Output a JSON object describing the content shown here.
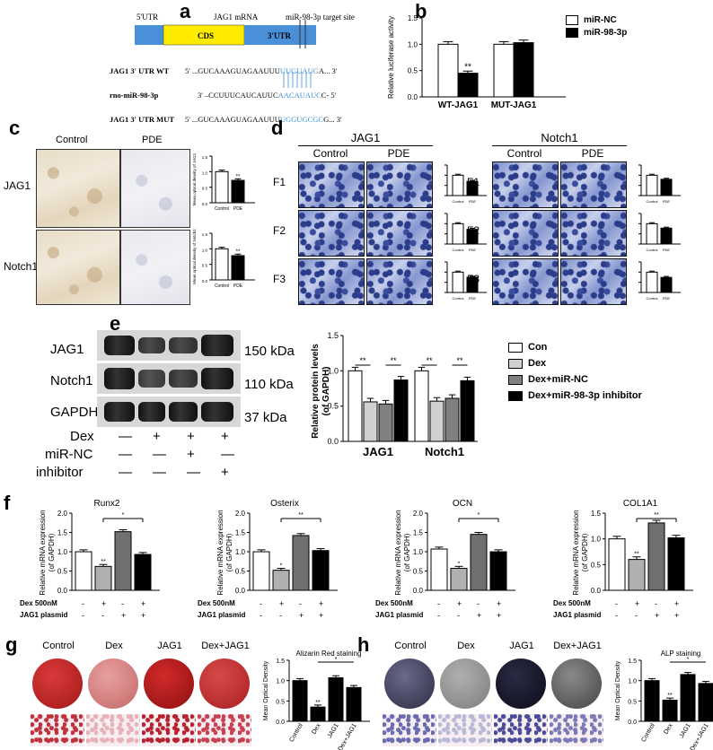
{
  "panel_letters": {
    "a": "a",
    "b": "b",
    "c": "c",
    "d": "d",
    "e": "e",
    "f": "f",
    "g": "g",
    "h": "h"
  },
  "panel_a": {
    "utr5": "5'UTR",
    "mrna": "JAG1 mRNA",
    "target": "miR-98-3p target site",
    "cds": "CDS",
    "utr3": "3'UTR",
    "rows": [
      {
        "name": "JAG1 3' UTR WT",
        "prefix": "5' ...GUCAAAGUAGAAUUU",
        "hl": "UUGUAUG",
        "suffix": "A... 3'"
      },
      {
        "name": "rno-miR-98-3p",
        "prefix": "3' –CCUUUCAUCAUUC",
        "hl": "AACAUAUC",
        "suffix": "C- 5'"
      },
      {
        "name": "JAG1 3' UTR MUT",
        "prefix": "5' ...GUCAAAGUAGAAUUU",
        "hl": "UGGUGCGC",
        "suffix": "G... 3'"
      }
    ],
    "colors": {
      "utr": "#4a90d9",
      "cds": "#ffeb00",
      "highlight": "#3a8fd8"
    }
  },
  "panel_b": {
    "chart_data": {
      "type": "bar",
      "categories": [
        "WT-JAG1",
        "MUT-JAG1"
      ],
      "series": [
        {
          "name": "miR-NC",
          "values": [
            1.0,
            1.0
          ],
          "err": [
            0.05,
            0.05
          ],
          "color": "#ffffff"
        },
        {
          "name": "miR-98-3p",
          "values": [
            0.45,
            1.03
          ],
          "err": [
            0.04,
            0.05
          ],
          "color": "#000000"
        }
      ],
      "ylabel": "Relative luciferase activity",
      "ylim": [
        0,
        1.5
      ],
      "yticks": [
        "0.0",
        "0.5",
        "1.0",
        "1.5"
      ],
      "annotations": [
        {
          "text": "**",
          "category": 0,
          "series": 1
        }
      ]
    }
  },
  "panel_c": {
    "cols": [
      "Control",
      "PDE"
    ],
    "rows": [
      "JAG1",
      "Notch1"
    ],
    "bars": [
      {
        "ylabel": "Mean optical density of JAG1",
        "values": [
          1.0,
          0.72
        ],
        "cats": [
          "Control",
          "PDE"
        ],
        "ann": "**"
      },
      {
        "ylabel": "Mean optical density of Notch1",
        "values": [
          1.0,
          0.78
        ],
        "cats": [
          "Control",
          "PDE"
        ],
        "ann": "**"
      }
    ]
  },
  "panel_d": {
    "groups": [
      {
        "title": "JAG1",
        "cols": [
          "Control",
          "PDE"
        ],
        "rows": [
          "F1",
          "F2",
          "F3"
        ]
      },
      {
        "title": "Notch1",
        "cols": [
          "Control",
          "PDE"
        ],
        "rows": [
          "F1",
          "F2",
          "F3"
        ]
      }
    ],
    "mini_cats": [
      "Control",
      "PDE"
    ]
  },
  "panel_e": {
    "blots": [
      {
        "label": "JAG1",
        "size": "150 kDa"
      },
      {
        "label": "Notch1",
        "size": "110 kDa"
      },
      {
        "label": "GAPDH",
        "size": "37 kDa"
      }
    ],
    "treatments": [
      {
        "label": "Dex",
        "signs": [
          "—",
          "+",
          "+",
          "+"
        ]
      },
      {
        "label": "miR-NC",
        "signs": [
          "—",
          "—",
          "+",
          "—"
        ]
      },
      {
        "label": "inhibitor",
        "signs": [
          "—",
          "—",
          "—",
          "+"
        ]
      }
    ],
    "chart_data": {
      "type": "bar",
      "categories": [
        "JAG1",
        "Notch1"
      ],
      "series": [
        {
          "name": "Con",
          "values": [
            1.0,
            1.0
          ],
          "color": "#ffffff"
        },
        {
          "name": "Dex",
          "values": [
            0.56,
            0.57
          ],
          "color": "#d0d0d0"
        },
        {
          "name": "Dex+miR-NC",
          "values": [
            0.53,
            0.61
          ],
          "color": "#808080"
        },
        {
          "name": "Dex+miR-98-3p inhibitor",
          "values": [
            0.87,
            0.86
          ],
          "color": "#000000"
        }
      ],
      "ylabel": "Relative protein levels (of GAPDH)",
      "ylim": [
        0,
        1.5
      ],
      "yticks": [
        "0.0",
        "0.5",
        "1.0",
        "1.5"
      ],
      "annotations": [
        "**",
        "**",
        "**",
        "**"
      ]
    }
  },
  "panel_f": {
    "row_labels": [
      "Dex 500nM",
      "JAG1 plasmid"
    ],
    "signs": [
      [
        "-",
        "+",
        "-",
        "+"
      ],
      [
        "-",
        "-",
        "+",
        "+"
      ]
    ],
    "ylabel": "Relative mRNA expression (of GAPDH)",
    "charts": [
      {
        "title": "Runx2",
        "values": [
          1.0,
          0.62,
          1.52,
          0.93
        ],
        "ylim": [
          0,
          2.0
        ],
        "yticks": [
          "0.0",
          "0.5",
          "1.0",
          "1.5",
          "2.0"
        ],
        "ann_bar": "**",
        "ann_bracket": "*"
      },
      {
        "title": "Osterix",
        "values": [
          1.0,
          0.52,
          1.42,
          1.03
        ],
        "ylim": [
          0,
          2.0
        ],
        "yticks": [
          "0.0",
          "0.5",
          "1.0",
          "1.5",
          "2.0"
        ],
        "ann_bar": "*",
        "ann_bracket": "**"
      },
      {
        "title": "OCN",
        "values": [
          1.07,
          0.57,
          1.45,
          1.0
        ],
        "ylim": [
          0,
          2.0
        ],
        "yticks": [
          "0.0",
          "0.5",
          "1.0",
          "1.5",
          "2.0"
        ],
        "ann_bar": "*",
        "ann_bracket": "*"
      },
      {
        "title": "COL1A1",
        "values": [
          1.0,
          0.6,
          1.31,
          1.02
        ],
        "ylim": [
          0,
          1.5
        ],
        "yticks": [
          "0.0",
          "0.5",
          "1.0",
          "1.5"
        ],
        "ann_bar": "**",
        "ann_bracket": "**"
      }
    ],
    "colors": [
      "#ffffff",
      "#b0b0b0",
      "#707070",
      "#000000"
    ]
  },
  "panel_g": {
    "cols": [
      "Control",
      "Dex",
      "JAG1",
      "Dex+JAG1"
    ],
    "chart_data": {
      "type": "bar",
      "title": "Alizarin Red staining",
      "categories": [
        "Control",
        "Dex",
        "JAG1",
        "Dex+JAG1"
      ],
      "values": [
        1.0,
        0.35,
        1.07,
        0.83
      ],
      "ylabel": "Mean Optical Density",
      "ylim": [
        0,
        1.5
      ],
      "yticks": [
        "0.0",
        "0.5",
        "1.0",
        "1.5"
      ],
      "ann_bar": "**",
      "ann_bracket": "*"
    }
  },
  "panel_h": {
    "cols": [
      "Control",
      "Dex",
      "JAG1",
      "Dex+JAG1"
    ],
    "chart_data": {
      "type": "bar",
      "title": "ALP staining",
      "categories": [
        "Control",
        "Dex",
        "JAG1",
        "Dex+JAG1"
      ],
      "values": [
        1.0,
        0.52,
        1.15,
        0.93
      ],
      "ylabel": "Mean Optical Density",
      "ylim": [
        0,
        1.5
      ],
      "yticks": [
        "0.0",
        "0.5",
        "1.0",
        "1.5"
      ],
      "ann_bar": "**",
      "ann_bracket": "*"
    }
  }
}
